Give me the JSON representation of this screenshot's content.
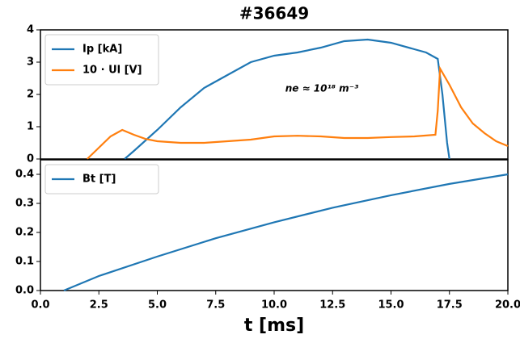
{
  "chart_data": [
    {
      "type": "line",
      "title": "#36649",
      "annotation": "ne ≈ 10¹⁸ m⁻³",
      "xlim": [
        0,
        20
      ],
      "ylim": [
        0,
        4
      ],
      "yticks": [
        0,
        1,
        2,
        3,
        4
      ],
      "legend": "upper-left",
      "series": [
        {
          "name": "Ip [kA]",
          "color": "#1f77b4",
          "x": [
            3.6,
            4,
            5,
            6,
            7,
            8,
            9,
            10,
            11,
            12,
            13,
            14,
            15,
            16,
            16.5,
            17,
            17.2,
            17.4,
            17.5
          ],
          "values": [
            0,
            0.25,
            0.9,
            1.6,
            2.2,
            2.6,
            3.0,
            3.2,
            3.3,
            3.45,
            3.65,
            3.7,
            3.6,
            3.4,
            3.3,
            3.1,
            2.0,
            0.5,
            0
          ]
        },
        {
          "name": "10 · Ul [V]",
          "color": "#ff7f0e",
          "x": [
            2,
            2.5,
            3,
            3.5,
            4,
            4.5,
            5,
            6,
            7,
            8,
            9,
            10,
            11,
            12,
            13,
            14,
            15,
            16,
            16.9,
            17.0,
            17.1,
            17.5,
            18,
            18.5,
            19,
            19.5,
            20
          ],
          "values": [
            0,
            0.35,
            0.7,
            0.9,
            0.75,
            0.62,
            0.55,
            0.5,
            0.5,
            0.55,
            0.6,
            0.7,
            0.72,
            0.7,
            0.65,
            0.65,
            0.68,
            0.7,
            0.75,
            1.5,
            2.8,
            2.3,
            1.6,
            1.1,
            0.8,
            0.55,
            0.4
          ]
        }
      ]
    },
    {
      "type": "line",
      "xlabel": "t [ms]",
      "xlim": [
        0,
        20
      ],
      "xticks": [
        {
          "value": 0,
          "label": "0.0"
        },
        {
          "value": 2.5,
          "label": "2.5"
        },
        {
          "value": 5,
          "label": "5.0"
        },
        {
          "value": 7.5,
          "label": "7.5"
        },
        {
          "value": 10,
          "label": "10.0"
        },
        {
          "value": 12.5,
          "label": "12.5"
        },
        {
          "value": 15,
          "label": "15.0"
        },
        {
          "value": 17.5,
          "label": "17.5"
        },
        {
          "value": 20,
          "label": "20.0"
        }
      ],
      "ylim": [
        0,
        0.45
      ],
      "yticks": [
        {
          "value": 0,
          "label": "0.0"
        },
        0.1,
        0.2,
        0.3,
        0.4
      ],
      "legend": "upper-left",
      "series": [
        {
          "name": "Bt [T]",
          "color": "#1f77b4",
          "x": [
            1,
            2.5,
            5,
            7.5,
            10,
            12.5,
            15,
            17.5,
            20
          ],
          "values": [
            0,
            0.05,
            0.117,
            0.18,
            0.235,
            0.285,
            0.328,
            0.367,
            0.4
          ]
        }
      ]
    }
  ]
}
